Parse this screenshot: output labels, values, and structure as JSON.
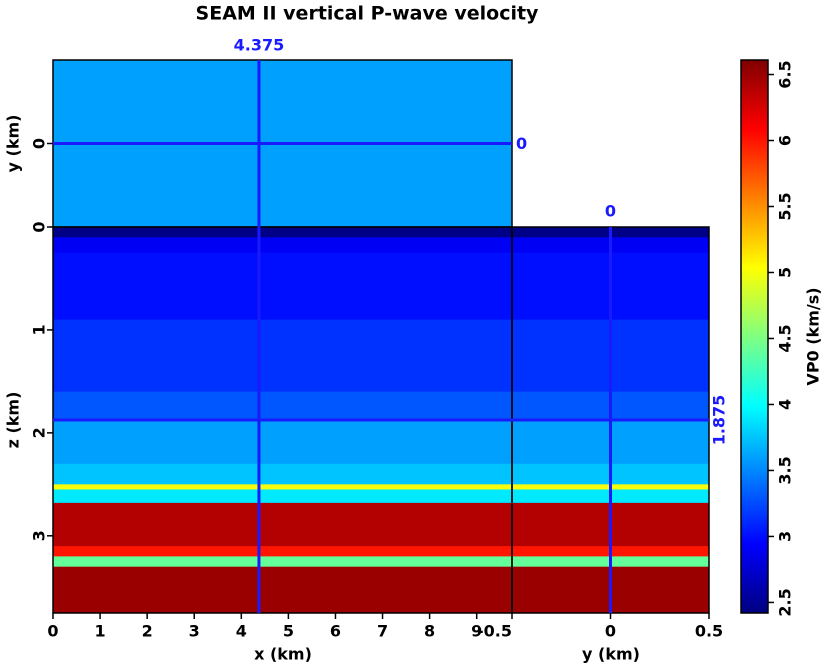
{
  "chart_data": {
    "type": "cube",
    "title": "SEAM II vertical P-wave velocity",
    "x_label": "x (km)",
    "y_label": "y (km)",
    "z_label": "z (km)",
    "colorbar_label": "VP0 (km/s)",
    "xlim": [
      0,
      9.75
    ],
    "xticks": [
      0,
      1,
      2,
      3,
      4,
      5,
      6,
      7,
      8,
      9
    ],
    "ylim": [
      -0.5,
      0.5
    ],
    "yticks": [
      -0.5,
      0,
      0.5
    ],
    "top_yticks": [
      0
    ],
    "zlim": [
      0,
      3.75
    ],
    "zticks": [
      0,
      1,
      2,
      3
    ],
    "clim": [
      2.42,
      6.61
    ],
    "cticks": [
      2.5,
      3,
      3.5,
      4,
      4.5,
      5,
      5.5,
      6,
      6.5
    ],
    "colormap": "jet",
    "slice": {
      "x": 4.375,
      "y": 0,
      "z": 1.875
    },
    "slice_color": "#1a1aff",
    "layers": {
      "z": [
        0,
        0.1,
        0.25,
        0.9,
        1.6,
        1.875,
        2.3,
        2.5,
        2.55,
        2.68,
        3.1,
        3.2,
        3.3,
        3.75
      ],
      "values": [
        2.45,
        2.9,
        3.0,
        3.15,
        3.3,
        3.6,
        3.75,
        5.0,
        3.9,
        6.4,
        6.0,
        4.4,
        6.5
      ]
    }
  }
}
